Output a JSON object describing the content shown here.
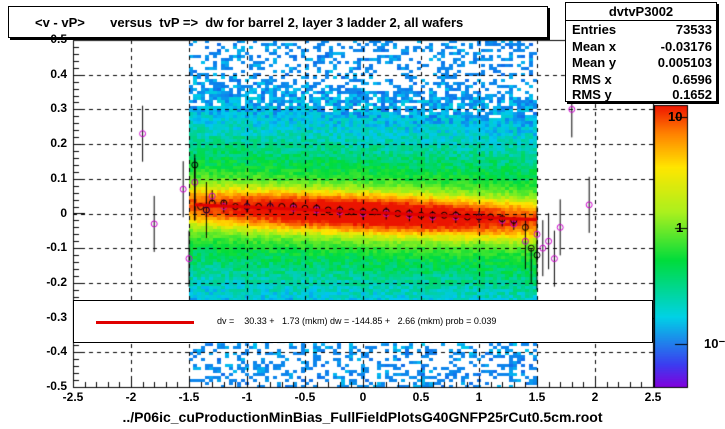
{
  "title": "<v - vP>       versus  tvP =>  dw for barrel 2, layer 3 ladder 2, all wafers",
  "stats": {
    "name": "dvtvP3002",
    "rows": [
      {
        "key": "Entries",
        "value": "73533"
      },
      {
        "key": "Mean x",
        "value": "-0.03176"
      },
      {
        "key": "Mean y",
        "value": "0.005103"
      },
      {
        "key": "RMS x",
        "value": "0.6596"
      },
      {
        "key": "RMS y",
        "value": "0.1652"
      }
    ]
  },
  "footer": "../P06ic_cuProductionMinBias_FullFieldPlotsG40GNFP25rCut0.5cm.root",
  "fit_text": "dv =    30.33 +   1.73 (mkm) dw = -144.85 +   2.66 (mkm) prob = 0.039",
  "colors": {
    "fit_line": "#e00000",
    "profile_black": "#000000",
    "profile_magenta": "#cc00cc",
    "grid": "#000000"
  },
  "chart_data": {
    "type": "heatmap",
    "title": "<v - vP>       versus  tvP =>  dw for barrel 2, layer 3 ladder 2, all wafers",
    "xlim": [
      -2.5,
      2.5
    ],
    "ylim": [
      -0.5,
      0.5
    ],
    "x_ticks": [
      "-2.5",
      "-2",
      "-1.5",
      "-1",
      "-0.5",
      "0",
      "0.5",
      "1",
      "1.5",
      "2",
      "2.5"
    ],
    "y_ticks": [
      "-0.5",
      "-0.4",
      "-0.3",
      "-0.2",
      "-0.1",
      "0",
      "0.1",
      "0.2",
      "0.3",
      "0.4",
      "0.5"
    ],
    "z_scale": "log",
    "z_ticks": [
      "10",
      "1",
      "10⁻¹"
    ],
    "grid": true,
    "density": {
      "x_range": [
        -1.5,
        1.5
      ],
      "center_y": 0.005,
      "rms_y": 0.1652
    },
    "fit_line": {
      "x": [
        -1.45,
        1.5
      ],
      "y": [
        0.025,
        -0.018
      ]
    },
    "profile_black": {
      "x": [
        -1.45,
        -1.4,
        -1.35,
        -1.3,
        -1.2,
        -1.1,
        -1.0,
        -0.9,
        -0.8,
        -0.7,
        -0.6,
        -0.5,
        -0.4,
        -0.3,
        -0.2,
        -0.1,
        0.0,
        0.1,
        0.2,
        0.3,
        0.4,
        0.5,
        0.6,
        0.7,
        0.8,
        0.9,
        1.0,
        1.1,
        1.2,
        1.3,
        1.4,
        1.45,
        1.5
      ],
      "y": [
        0.14,
        0.02,
        0.01,
        0.03,
        0.03,
        0.02,
        0.02,
        0.02,
        0.02,
        0.02,
        0.02,
        0.015,
        0.015,
        0.01,
        0.01,
        0.005,
        0.005,
        0.005,
        0.005,
        0.0,
        0.0,
        -0.005,
        -0.005,
        -0.005,
        -0.005,
        -0.01,
        -0.01,
        -0.01,
        -0.015,
        -0.02,
        -0.04,
        -0.1,
        -0.12
      ]
    },
    "profile_magenta": {
      "x": [
        -1.9,
        -1.8,
        -1.55,
        -1.5,
        -1.45,
        -1.35,
        -1.3,
        -1.2,
        -1.0,
        -0.8,
        -0.6,
        -0.4,
        -0.2,
        0.0,
        0.2,
        0.4,
        0.6,
        0.8,
        1.0,
        1.2,
        1.3,
        1.4,
        1.5,
        1.55,
        1.6,
        1.65,
        1.7,
        1.8,
        1.95
      ],
      "y": [
        0.23,
        -0.03,
        0.07,
        -0.13,
        0.09,
        0.01,
        0.05,
        0.02,
        0.02,
        0.02,
        0.015,
        0.01,
        0.005,
        0.0,
        0.0,
        -0.005,
        -0.01,
        -0.01,
        -0.01,
        -0.02,
        -0.03,
        -0.08,
        -0.06,
        -0.1,
        -0.08,
        -0.13,
        -0.04,
        0.3,
        0.025
      ]
    }
  }
}
